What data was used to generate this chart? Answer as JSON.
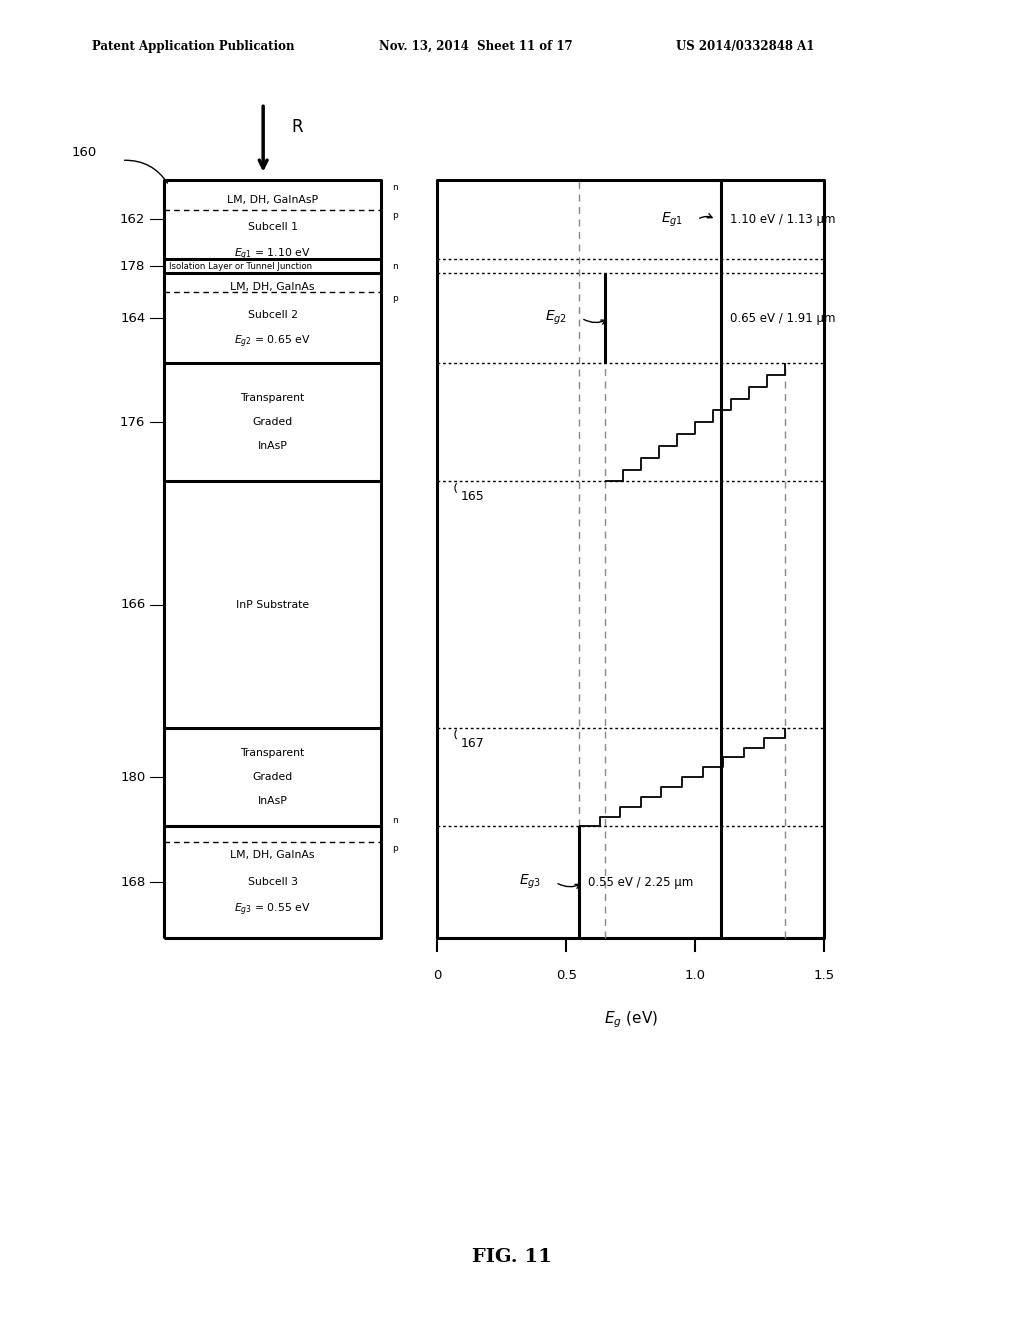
{
  "header_left": "Patent Application Publication",
  "header_mid": "Nov. 13, 2014  Sheet 11 of 17",
  "header_right": "US 2014/0332848 A1",
  "fig_label": "FIG. 11",
  "bg_color": "#ffffff",
  "dashed_color": "#888888",
  "eg1_ev": 1.1,
  "eg2_ev": 0.65,
  "eg3_ev": 0.55,
  "eg_inP": 1.35,
  "x_axis_min": 0.0,
  "x_axis_max": 1.5,
  "x_axis_ticks": [
    0.0,
    0.5,
    1.0,
    1.5
  ],
  "x_axis_tick_labels": [
    "0",
    "0.5",
    "1.0",
    "1.5"
  ],
  "n_staircase_steps": 10
}
